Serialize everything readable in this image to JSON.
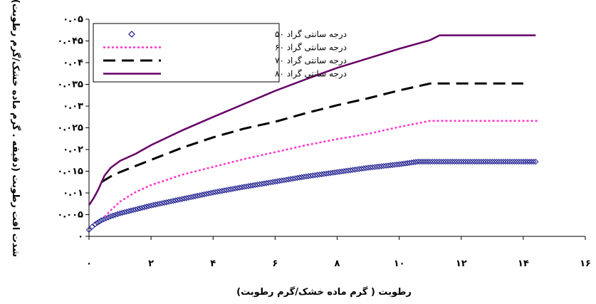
{
  "chart_data": {
    "type": "line",
    "xlabel": "رطوبت  ( گرم ماده خشک/گرم رطوبت)",
    "ylabel": "شدت افت رطوبت (دقیقه . گرم ماده خشک/گرم رطوبت)",
    "xlim": [
      0,
      16
    ],
    "ylim": [
      0,
      0.05
    ],
    "x_ticks": [
      0,
      2,
      4,
      6,
      8,
      10,
      12,
      14,
      16
    ],
    "y_ticks": [
      0,
      0.005,
      0.01,
      0.015,
      0.02,
      0.025,
      0.03,
      0.035,
      0.04,
      0.045,
      0.05
    ],
    "x_tick_labels": [
      "۰",
      "۲",
      "۴",
      "۶",
      "۸",
      "۱۰",
      "۱۲",
      "۱۴",
      "۱۶"
    ],
    "y_tick_labels": [
      "۰",
      "۰.۰۰۵",
      "۰.۰۱",
      "۰.۰۱۵",
      "۰.۰۲",
      "۰.۰۲۵",
      "۰.۰۳",
      "۰.۰۳۵",
      "۰.۰۴",
      "۰.۰۴۵",
      "۰.۰۵"
    ],
    "grid": false,
    "legend_position": "top-left",
    "series": [
      {
        "name": "درجه سانتی گراد ۵۰",
        "color": "#1a1a8c",
        "style": "diamond-markers",
        "points": [
          [
            0,
            0.0015
          ],
          [
            0.1,
            0.0022
          ],
          [
            0.2,
            0.0028
          ],
          [
            0.4,
            0.0037
          ],
          [
            0.7,
            0.0046
          ],
          [
            1.0,
            0.0053
          ],
          [
            1.5,
            0.0062
          ],
          [
            2.0,
            0.0071
          ],
          [
            3.0,
            0.0086
          ],
          [
            4.0,
            0.0101
          ],
          [
            5.0,
            0.0114
          ],
          [
            6.0,
            0.0126
          ],
          [
            7.0,
            0.0138
          ],
          [
            8.0,
            0.0148
          ],
          [
            9.0,
            0.0158
          ],
          [
            10.0,
            0.0166
          ],
          [
            10.6,
            0.0172
          ],
          [
            11.0,
            0.0172
          ],
          [
            12.0,
            0.0172
          ],
          [
            13.0,
            0.0172
          ],
          [
            14.0,
            0.0172
          ],
          [
            14.4,
            0.0172
          ]
        ]
      },
      {
        "name": "درجه سانتی گراد ۶۰",
        "color": "#ff33cc",
        "style": "dotted",
        "points": [
          [
            0.5,
            0.0045
          ],
          [
            0.7,
            0.006
          ],
          [
            1.0,
            0.008
          ],
          [
            1.5,
            0.0102
          ],
          [
            2.0,
            0.0118
          ],
          [
            3.0,
            0.0142
          ],
          [
            4.0,
            0.016
          ],
          [
            5.0,
            0.0178
          ],
          [
            6.0,
            0.0194
          ],
          [
            7.0,
            0.021
          ],
          [
            8.0,
            0.0224
          ],
          [
            9.0,
            0.0236
          ],
          [
            10.0,
            0.0252
          ],
          [
            11.0,
            0.0266
          ],
          [
            12.0,
            0.0266
          ],
          [
            13.0,
            0.0266
          ],
          [
            14.0,
            0.0266
          ],
          [
            14.5,
            0.0266
          ]
        ]
      },
      {
        "name": "درجه سانتی گراد ۷۰",
        "color": "#000000",
        "style": "dashed",
        "points": [
          [
            0.4,
            0.0125
          ],
          [
            0.7,
            0.0138
          ],
          [
            1.0,
            0.0148
          ],
          [
            1.5,
            0.0162
          ],
          [
            2.0,
            0.0176
          ],
          [
            3.0,
            0.0204
          ],
          [
            4.0,
            0.0228
          ],
          [
            5.0,
            0.0248
          ],
          [
            6.0,
            0.0264
          ],
          [
            7.0,
            0.0284
          ],
          [
            8.0,
            0.0302
          ],
          [
            9.0,
            0.0318
          ],
          [
            10.0,
            0.0336
          ],
          [
            11.0,
            0.0352
          ],
          [
            12.0,
            0.0352
          ],
          [
            13.0,
            0.0352
          ],
          [
            14.0,
            0.0352
          ]
        ]
      },
      {
        "name": "درجه سانتی گراد ۸۰",
        "color": "#660066",
        "style": "solid",
        "points": [
          [
            0,
            0.0072
          ],
          [
            0.15,
            0.0088
          ],
          [
            0.3,
            0.0108
          ],
          [
            0.5,
            0.014
          ],
          [
            0.7,
            0.0158
          ],
          [
            1.0,
            0.0174
          ],
          [
            1.5,
            0.019
          ],
          [
            2.0,
            0.021
          ],
          [
            3.0,
            0.0244
          ],
          [
            4.0,
            0.0275
          ],
          [
            5.0,
            0.0305
          ],
          [
            6.0,
            0.0335
          ],
          [
            7.0,
            0.0362
          ],
          [
            8.0,
            0.0388
          ],
          [
            9.0,
            0.041
          ],
          [
            10.0,
            0.0432
          ],
          [
            11.0,
            0.0452
          ],
          [
            11.3,
            0.0463
          ],
          [
            12.0,
            0.0463
          ],
          [
            13.0,
            0.0463
          ],
          [
            14.0,
            0.0463
          ],
          [
            14.4,
            0.0463
          ]
        ]
      }
    ]
  }
}
